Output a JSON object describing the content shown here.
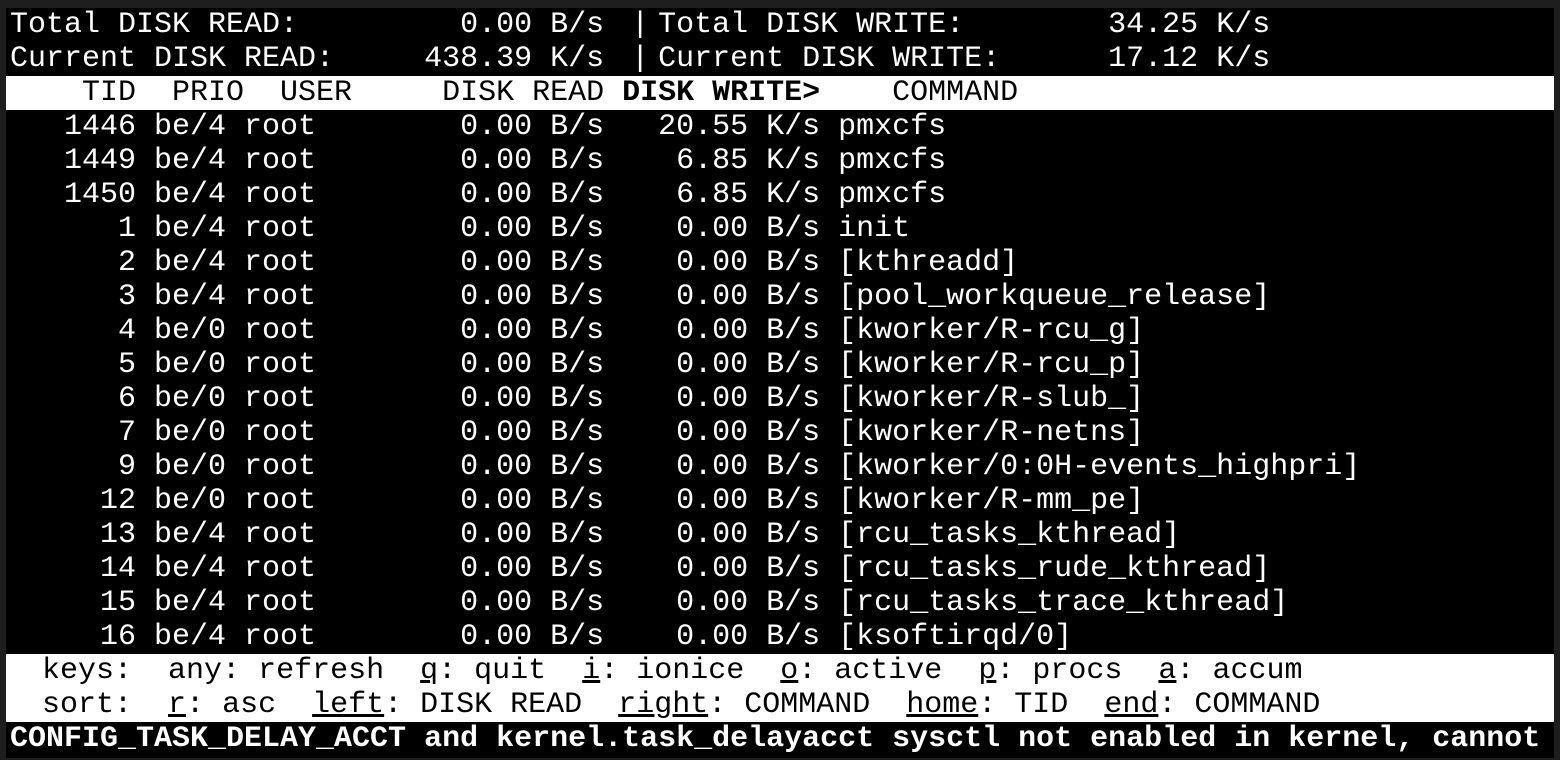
{
  "summary": {
    "total_read_label": "Total DISK READ:",
    "total_read": "0.00 B/s",
    "total_write_label": "Total DISK WRITE:",
    "total_write": "34.25 K/s",
    "current_read_label": "Current DISK READ:",
    "current_read": "438.39 K/s",
    "current_write_label": "Current DISK WRITE:",
    "current_write": "17.12 K/s",
    "separator": "|"
  },
  "columns": {
    "tid": "TID",
    "prio": "PRIO",
    "user": "USER",
    "read": "DISK READ",
    "write": "DISK WRITE>",
    "command": "COMMAND"
  },
  "rows": [
    {
      "tid": "1446",
      "prio": "be/4",
      "user": "root",
      "read": "0.00 B/s",
      "write": "20.55 K/s",
      "command": "pmxcfs"
    },
    {
      "tid": "1449",
      "prio": "be/4",
      "user": "root",
      "read": "0.00 B/s",
      "write": "6.85 K/s",
      "command": "pmxcfs"
    },
    {
      "tid": "1450",
      "prio": "be/4",
      "user": "root",
      "read": "0.00 B/s",
      "write": "6.85 K/s",
      "command": "pmxcfs"
    },
    {
      "tid": "1",
      "prio": "be/4",
      "user": "root",
      "read": "0.00 B/s",
      "write": "0.00 B/s",
      "command": "init"
    },
    {
      "tid": "2",
      "prio": "be/4",
      "user": "root",
      "read": "0.00 B/s",
      "write": "0.00 B/s",
      "command": "[kthreadd]"
    },
    {
      "tid": "3",
      "prio": "be/4",
      "user": "root",
      "read": "0.00 B/s",
      "write": "0.00 B/s",
      "command": "[pool_workqueue_release]"
    },
    {
      "tid": "4",
      "prio": "be/0",
      "user": "root",
      "read": "0.00 B/s",
      "write": "0.00 B/s",
      "command": "[kworker/R-rcu_g]"
    },
    {
      "tid": "5",
      "prio": "be/0",
      "user": "root",
      "read": "0.00 B/s",
      "write": "0.00 B/s",
      "command": "[kworker/R-rcu_p]"
    },
    {
      "tid": "6",
      "prio": "be/0",
      "user": "root",
      "read": "0.00 B/s",
      "write": "0.00 B/s",
      "command": "[kworker/R-slub_]"
    },
    {
      "tid": "7",
      "prio": "be/0",
      "user": "root",
      "read": "0.00 B/s",
      "write": "0.00 B/s",
      "command": "[kworker/R-netns]"
    },
    {
      "tid": "9",
      "prio": "be/0",
      "user": "root",
      "read": "0.00 B/s",
      "write": "0.00 B/s",
      "command": "[kworker/0:0H-events_highpri]"
    },
    {
      "tid": "12",
      "prio": "be/0",
      "user": "root",
      "read": "0.00 B/s",
      "write": "0.00 B/s",
      "command": "[kworker/R-mm_pe]"
    },
    {
      "tid": "13",
      "prio": "be/4",
      "user": "root",
      "read": "0.00 B/s",
      "write": "0.00 B/s",
      "command": "[rcu_tasks_kthread]"
    },
    {
      "tid": "14",
      "prio": "be/4",
      "user": "root",
      "read": "0.00 B/s",
      "write": "0.00 B/s",
      "command": "[rcu_tasks_rude_kthread]"
    },
    {
      "tid": "15",
      "prio": "be/4",
      "user": "root",
      "read": "0.00 B/s",
      "write": "0.00 B/s",
      "command": "[rcu_tasks_trace_kthread]"
    },
    {
      "tid": "16",
      "prio": "be/4",
      "user": "root",
      "read": "0.00 B/s",
      "write": "0.00 B/s",
      "command": "[ksoftirqd/0]"
    }
  ],
  "keys": {
    "label": "keys:",
    "items": [
      {
        "key": "any",
        "desc": "refresh",
        "underline": false
      },
      {
        "key": "q",
        "desc": "quit",
        "underline": true
      },
      {
        "key": "i",
        "desc": "ionice",
        "underline": true
      },
      {
        "key": "o",
        "desc": "active",
        "underline": true
      },
      {
        "key": "p",
        "desc": "procs",
        "underline": true
      },
      {
        "key": "a",
        "desc": "accum",
        "underline": true
      }
    ]
  },
  "sort": {
    "label": "sort:",
    "items": [
      {
        "key": "r",
        "desc": "asc"
      },
      {
        "key": "left",
        "desc": "DISK READ"
      },
      {
        "key": "right",
        "desc": "COMMAND"
      },
      {
        "key": "home",
        "desc": "TID"
      },
      {
        "key": "end",
        "desc": "COMMAND"
      }
    ]
  },
  "warning": "CONFIG_TASK_DELAY_ACCT and kernel.task_delayacct sysctl not enabled in kernel, cannot"
}
